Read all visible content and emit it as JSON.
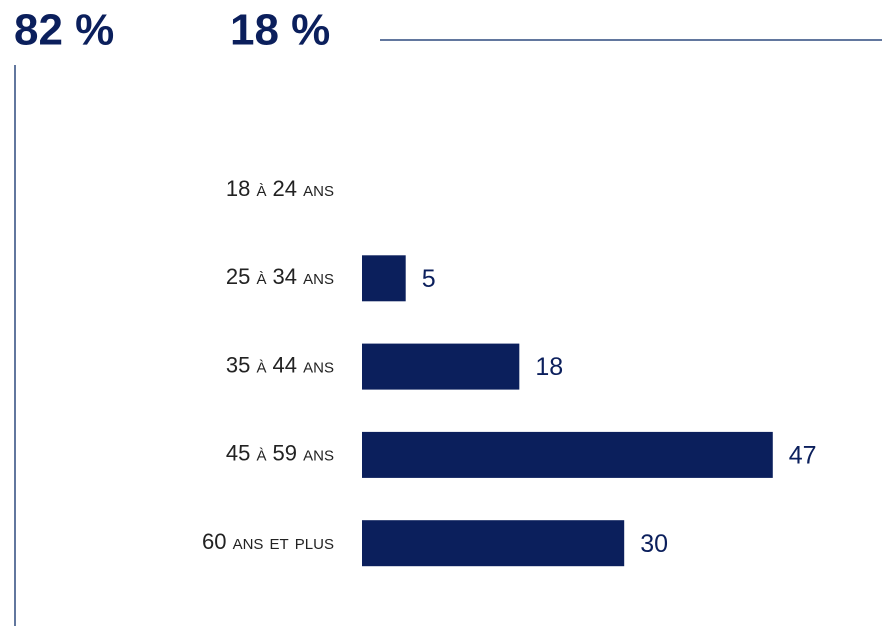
{
  "header_stats": [
    "82 %",
    "18 %"
  ],
  "chart_data": {
    "type": "bar",
    "orientation": "horizontal",
    "categories": [
      "18 à 24 ans",
      "25 à 34 ans",
      "35 à 44 ans",
      "45 à 59 ans",
      "60 ans et plus"
    ],
    "values": [
      null,
      5,
      18,
      47,
      30
    ],
    "color": "#0b1f5c"
  }
}
